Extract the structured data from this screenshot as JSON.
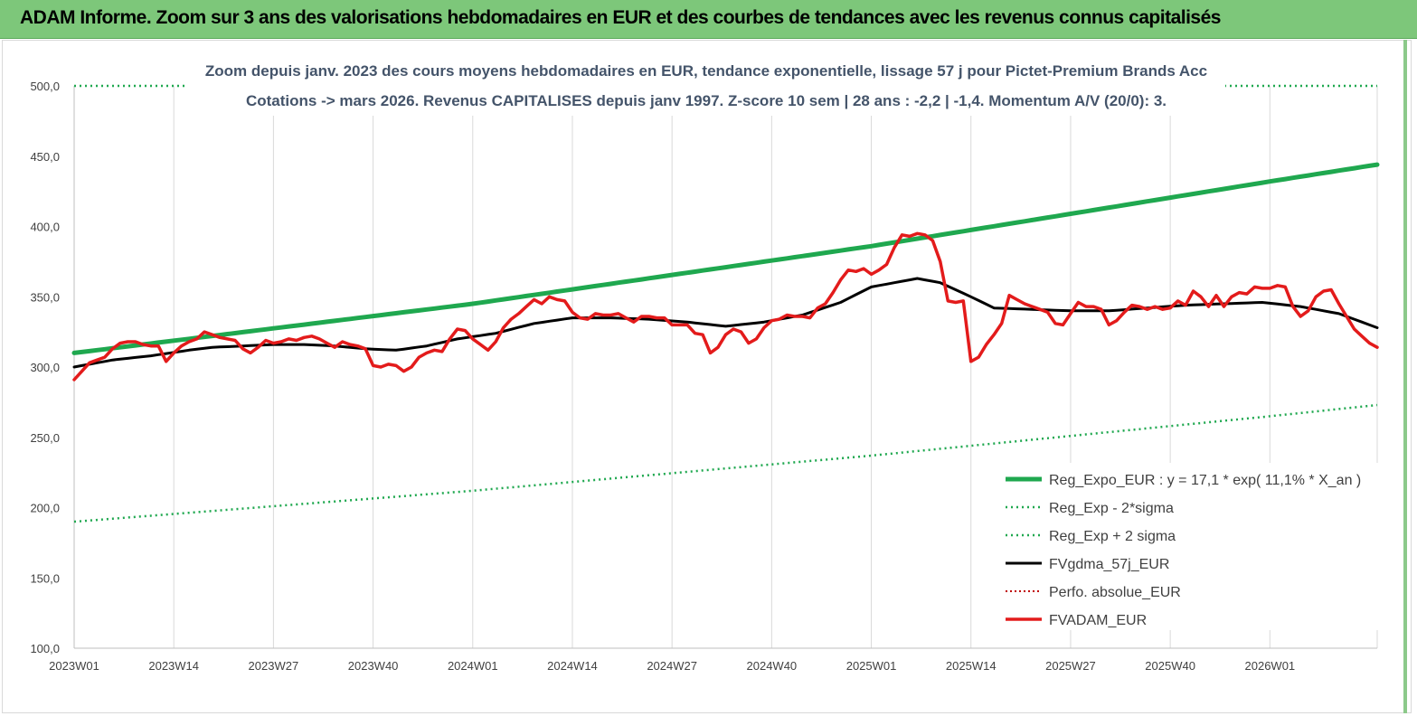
{
  "banner": {
    "title": "ADAM Informe. Zoom sur 3 ans des valorisations hebdomadaires en EUR et des courbes de tendances avec les revenus connus capitalisés"
  },
  "colors": {
    "banner_bg": "#7dc77a",
    "regression": "#1fa84f",
    "sigma": "#1fa84f",
    "smoothing": "#000000",
    "perfo": "#c00000",
    "adam": "#e31b1b"
  },
  "chart_data": {
    "type": "line",
    "title": "Zoom depuis janv. 2023 des cours moyens hebdomadaires en EUR, tendance exponentielle, lissage 57 j pour Pictet-Premium Brands Acc",
    "subtitle": "Cotations -> mars 2026. Revenus CAPITALISES depuis janv 1997. Z-score 10 sem | 28 ans : -2,2 | -1,4. Momentum A/V (20/0): 3.",
    "xlabel": "",
    "ylabel": "",
    "ylim": [
      100,
      500
    ],
    "y_ticks": [
      "100,0",
      "150,0",
      "200,0",
      "250,0",
      "300,0",
      "350,0",
      "400,0",
      "450,0",
      "500,0"
    ],
    "y_tick_values": [
      100,
      150,
      200,
      250,
      300,
      350,
      400,
      450,
      500
    ],
    "x_ticks": [
      "2023W01",
      "2023W14",
      "2023W27",
      "2023W40",
      "2024W01",
      "2024W14",
      "2024W27",
      "2024W40",
      "2025W01",
      "2025W14",
      "2025W27",
      "2025W40",
      "2026W01"
    ],
    "x_tick_index": [
      0,
      13,
      26,
      39,
      52,
      65,
      78,
      91,
      104,
      117,
      130,
      143,
      156
    ],
    "x_count": 171,
    "grid": "vertical",
    "legend_position": "right",
    "series": [
      {
        "name": "Reg_Expo_EUR : y = 17,1 * exp( 11,1% * X_an )",
        "style": "solid-thick",
        "points": [
          [
            0,
            310
          ],
          [
            52,
            345
          ],
          [
            104,
            386
          ],
          [
            156,
            432
          ],
          [
            170,
            444
          ]
        ]
      },
      {
        "name": "Reg_Exp - 2*sigma",
        "style": "dotted",
        "points": [
          [
            0,
            190
          ],
          [
            52,
            212
          ],
          [
            104,
            237
          ],
          [
            156,
            265
          ],
          [
            170,
            273
          ]
        ]
      },
      {
        "name": "Reg_Exp + 2 sigma",
        "style": "dotted",
        "points": [
          [
            0,
            500
          ],
          [
            170,
            500
          ]
        ]
      },
      {
        "name": "FVgdma_57j_EUR",
        "style": "solid",
        "points": [
          [
            0,
            300
          ],
          [
            5,
            305
          ],
          [
            10,
            308
          ],
          [
            15,
            312
          ],
          [
            18,
            314
          ],
          [
            22,
            315
          ],
          [
            26,
            316
          ],
          [
            30,
            316
          ],
          [
            34,
            315
          ],
          [
            38,
            313
          ],
          [
            42,
            312
          ],
          [
            46,
            315
          ],
          [
            50,
            320
          ],
          [
            55,
            324
          ],
          [
            60,
            331
          ],
          [
            65,
            335
          ],
          [
            70,
            335
          ],
          [
            75,
            334
          ],
          [
            80,
            332
          ],
          [
            85,
            329
          ],
          [
            90,
            332
          ],
          [
            95,
            337
          ],
          [
            100,
            346
          ],
          [
            104,
            357
          ],
          [
            108,
            361
          ],
          [
            110,
            363
          ],
          [
            113,
            360
          ],
          [
            117,
            350
          ],
          [
            120,
            342
          ],
          [
            125,
            341
          ],
          [
            130,
            340
          ],
          [
            135,
            340
          ],
          [
            140,
            342
          ],
          [
            145,
            344
          ],
          [
            150,
            345
          ],
          [
            155,
            346
          ],
          [
            160,
            343
          ],
          [
            165,
            338
          ],
          [
            170,
            328
          ]
        ]
      },
      {
        "name": "Perfo. absolue_EUR",
        "style": "dotted-red",
        "points": []
      },
      {
        "name": "FVADAM_EUR",
        "style": "solid-thick",
        "points": [
          [
            0,
            291
          ],
          [
            2,
            303
          ],
          [
            4,
            307
          ],
          [
            5,
            313
          ],
          [
            6,
            317
          ],
          [
            7,
            318
          ],
          [
            8,
            318
          ],
          [
            9,
            316
          ],
          [
            10,
            315
          ],
          [
            11,
            315
          ],
          [
            12,
            304
          ],
          [
            13,
            310
          ],
          [
            14,
            315
          ],
          [
            15,
            318
          ],
          [
            16,
            320
          ],
          [
            17,
            325
          ],
          [
            18,
            323
          ],
          [
            19,
            321
          ],
          [
            20,
            320
          ],
          [
            21,
            319
          ],
          [
            22,
            313
          ],
          [
            23,
            310
          ],
          [
            24,
            314
          ],
          [
            25,
            319
          ],
          [
            26,
            317
          ],
          [
            27,
            318
          ],
          [
            28,
            320
          ],
          [
            29,
            319
          ],
          [
            30,
            321
          ],
          [
            31,
            322
          ],
          [
            32,
            320
          ],
          [
            33,
            317
          ],
          [
            34,
            314
          ],
          [
            35,
            318
          ],
          [
            36,
            316
          ],
          [
            37,
            315
          ],
          [
            38,
            313
          ],
          [
            39,
            301
          ],
          [
            40,
            300
          ],
          [
            41,
            302
          ],
          [
            42,
            301
          ],
          [
            43,
            297
          ],
          [
            44,
            300
          ],
          [
            45,
            307
          ],
          [
            46,
            310
          ],
          [
            47,
            312
          ],
          [
            48,
            311
          ],
          [
            49,
            320
          ],
          [
            50,
            327
          ],
          [
            51,
            326
          ],
          [
            52,
            320
          ],
          [
            53,
            316
          ],
          [
            54,
            312
          ],
          [
            55,
            318
          ],
          [
            56,
            328
          ],
          [
            57,
            334
          ],
          [
            58,
            338
          ],
          [
            59,
            343
          ],
          [
            60,
            348
          ],
          [
            61,
            345
          ],
          [
            62,
            350
          ],
          [
            63,
            348
          ],
          [
            64,
            347
          ],
          [
            65,
            339
          ],
          [
            66,
            335
          ],
          [
            67,
            334
          ],
          [
            68,
            338
          ],
          [
            69,
            337
          ],
          [
            70,
            337
          ],
          [
            71,
            338
          ],
          [
            72,
            335
          ],
          [
            73,
            332
          ],
          [
            74,
            336
          ],
          [
            75,
            336
          ],
          [
            76,
            335
          ],
          [
            77,
            335
          ],
          [
            78,
            330
          ],
          [
            79,
            330
          ],
          [
            80,
            330
          ],
          [
            81,
            324
          ],
          [
            82,
            323
          ],
          [
            83,
            310
          ],
          [
            84,
            314
          ],
          [
            85,
            323
          ],
          [
            86,
            327
          ],
          [
            87,
            325
          ],
          [
            88,
            317
          ],
          [
            89,
            320
          ],
          [
            90,
            328
          ],
          [
            91,
            333
          ],
          [
            92,
            334
          ],
          [
            93,
            337
          ],
          [
            94,
            336
          ],
          [
            95,
            336
          ],
          [
            96,
            335
          ],
          [
            97,
            342
          ],
          [
            98,
            345
          ],
          [
            99,
            353
          ],
          [
            100,
            362
          ],
          [
            101,
            369
          ],
          [
            102,
            368
          ],
          [
            103,
            370
          ],
          [
            104,
            366
          ],
          [
            105,
            369
          ],
          [
            106,
            373
          ],
          [
            107,
            385
          ],
          [
            108,
            394
          ],
          [
            109,
            393
          ],
          [
            110,
            395
          ],
          [
            111,
            394
          ],
          [
            112,
            390
          ],
          [
            113,
            375
          ],
          [
            114,
            347
          ],
          [
            115,
            346
          ],
          [
            116,
            347
          ],
          [
            117,
            304
          ],
          [
            118,
            307
          ],
          [
            119,
            316
          ],
          [
            120,
            323
          ],
          [
            121,
            331
          ],
          [
            122,
            351
          ],
          [
            123,
            348
          ],
          [
            124,
            345
          ],
          [
            125,
            343
          ],
          [
            126,
            341
          ],
          [
            127,
            339
          ],
          [
            128,
            331
          ],
          [
            129,
            330
          ],
          [
            130,
            338
          ],
          [
            131,
            346
          ],
          [
            132,
            343
          ],
          [
            133,
            343
          ],
          [
            134,
            341
          ],
          [
            135,
            330
          ],
          [
            136,
            333
          ],
          [
            137,
            339
          ],
          [
            138,
            344
          ],
          [
            139,
            343
          ],
          [
            140,
            341
          ],
          [
            141,
            343
          ],
          [
            142,
            341
          ],
          [
            143,
            342
          ],
          [
            144,
            347
          ],
          [
            145,
            344
          ],
          [
            146,
            354
          ],
          [
            147,
            350
          ],
          [
            148,
            343
          ],
          [
            149,
            351
          ],
          [
            150,
            343
          ],
          [
            151,
            350
          ],
          [
            152,
            353
          ],
          [
            153,
            352
          ],
          [
            154,
            357
          ],
          [
            155,
            356
          ],
          [
            156,
            356
          ],
          [
            157,
            358
          ],
          [
            158,
            357
          ],
          [
            159,
            343
          ],
          [
            160,
            336
          ],
          [
            161,
            340
          ],
          [
            162,
            350
          ],
          [
            163,
            354
          ],
          [
            164,
            355
          ],
          [
            165,
            345
          ],
          [
            166,
            336
          ],
          [
            167,
            327
          ],
          [
            168,
            322
          ],
          [
            169,
            317
          ],
          [
            170,
            314
          ]
        ]
      }
    ]
  }
}
